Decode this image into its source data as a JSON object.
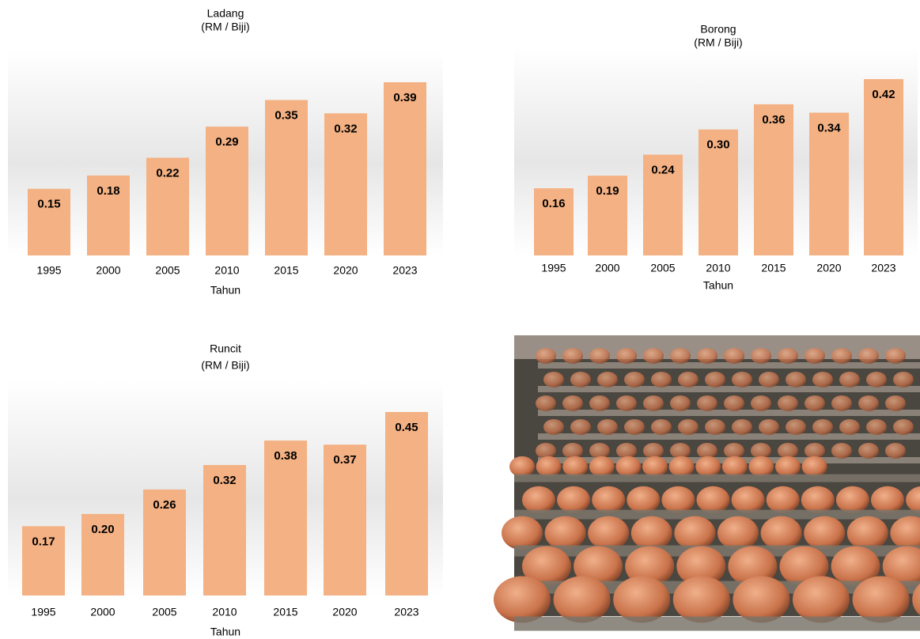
{
  "chart_data": [
    {
      "type": "bar",
      "title": "Ladang",
      "subtitle": "(RM / Biji)",
      "x_label": "Tahun",
      "color": "#f4b183",
      "categories": [
        "1995",
        "2000",
        "2005",
        "2010",
        "2015",
        "2020",
        "2023"
      ],
      "values": [
        0.15,
        0.18,
        0.22,
        0.29,
        0.35,
        0.32,
        0.39
      ],
      "value_labels": [
        "0.15",
        "0.18",
        "0.22",
        "0.29",
        "0.35",
        "0.32",
        "0.39"
      ]
    },
    {
      "type": "bar",
      "title": "Borong",
      "subtitle": "(RM / Biji)",
      "x_label": "Tahun",
      "color": "#f4b183",
      "categories": [
        "1995",
        "2000",
        "2005",
        "2010",
        "2015",
        "2020",
        "2023"
      ],
      "values": [
        0.16,
        0.19,
        0.24,
        0.3,
        0.36,
        0.34,
        0.42
      ],
      "value_labels": [
        "0.16",
        "0.19",
        "0.24",
        "0.30",
        "0.36",
        "0.34",
        "0.42"
      ]
    },
    {
      "type": "bar",
      "title": "Runcit",
      "subtitle": "(RM / Biji)",
      "x_label": "Tahun",
      "color": "#f4b183",
      "categories": [
        "1995",
        "2000",
        "2005",
        "2010",
        "2015",
        "2020",
        "2023"
      ],
      "values": [
        0.17,
        0.2,
        0.26,
        0.32,
        0.38,
        0.37,
        0.45
      ],
      "value_labels": [
        "0.17",
        "0.20",
        "0.26",
        "0.32",
        "0.38",
        "0.37",
        "0.45"
      ]
    }
  ]
}
